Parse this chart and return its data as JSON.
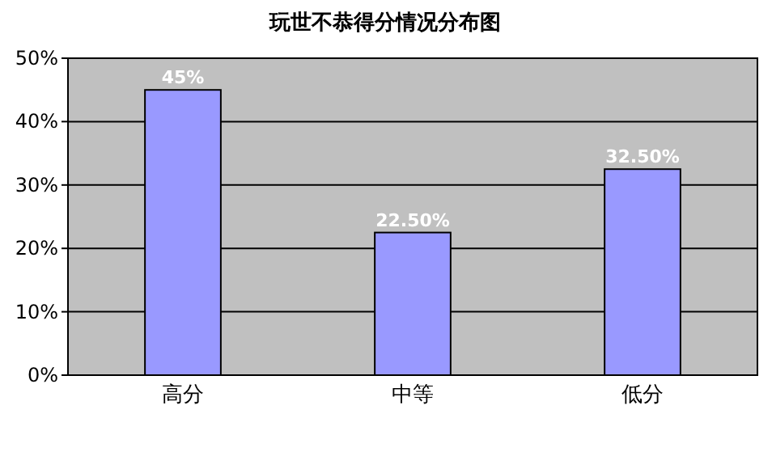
{
  "chart_data": {
    "type": "bar",
    "title": "玩世不恭得分情况分布图",
    "categories": [
      "高分",
      "中等",
      "低分"
    ],
    "values": [
      45,
      22.5,
      32.5
    ],
    "value_labels": [
      "45%",
      "22.50%",
      "32.50%"
    ],
    "color": "#9999ff",
    "ylim": [
      0,
      50
    ],
    "yticks": [
      {
        "value": 0,
        "label": "0%"
      },
      {
        "value": 10,
        "label": "10%"
      },
      {
        "value": 20,
        "label": "20%"
      },
      {
        "value": 30,
        "label": "30%"
      },
      {
        "value": 40,
        "label": "40%"
      },
      {
        "value": 50,
        "label": "50%"
      }
    ],
    "grid": "y"
  }
}
